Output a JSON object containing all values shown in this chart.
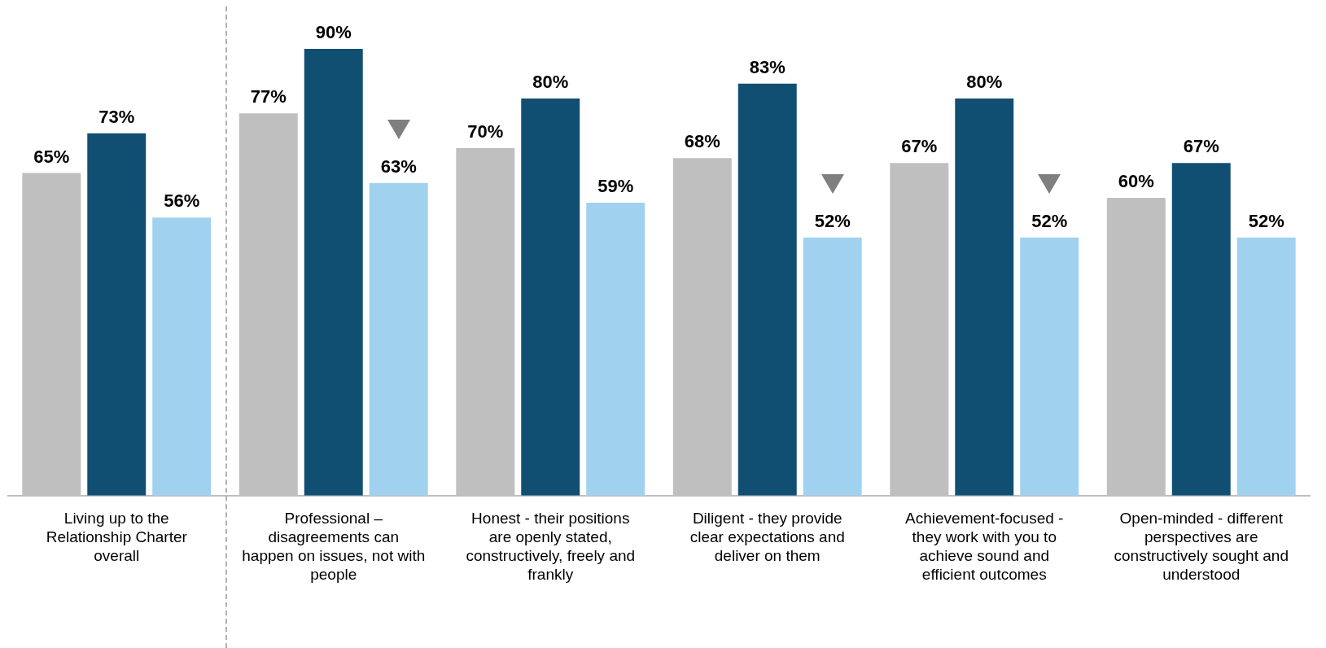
{
  "chart_data": {
    "type": "bar",
    "categories": [
      "Living up to the Relationship Charter overall",
      "Professional – disagreements can happen on issues, not with people",
      "Honest - their positions are openly stated, constructively, freely and frankly",
      "Diligent - they provide clear expectations and deliver on them",
      "Achievement-focused - they work with you to achieve sound and efficient outcomes",
      "Open-minded - different perspectives are constructively sought and understood"
    ],
    "series": [
      {
        "color": "#bfbfbf",
        "values": [
          65,
          77,
          70,
          68,
          67,
          60
        ],
        "value_labels": [
          "65%",
          "77%",
          "70%",
          "68%",
          "67%",
          "60%"
        ]
      },
      {
        "color": "#114f72",
        "values": [
          73,
          90,
          80,
          83,
          80,
          67
        ],
        "value_labels": [
          "73%",
          "90%",
          "80%",
          "83%",
          "80%",
          "67%"
        ]
      },
      {
        "color": "#a0d2f0",
        "values": [
          56,
          63,
          59,
          52,
          52,
          52
        ],
        "value_labels": [
          "56%",
          "63%",
          "59%",
          "52%",
          "52%",
          "52%"
        ]
      }
    ],
    "tick_labels": "x",
    "grid": false,
    "legend": false
  }
}
